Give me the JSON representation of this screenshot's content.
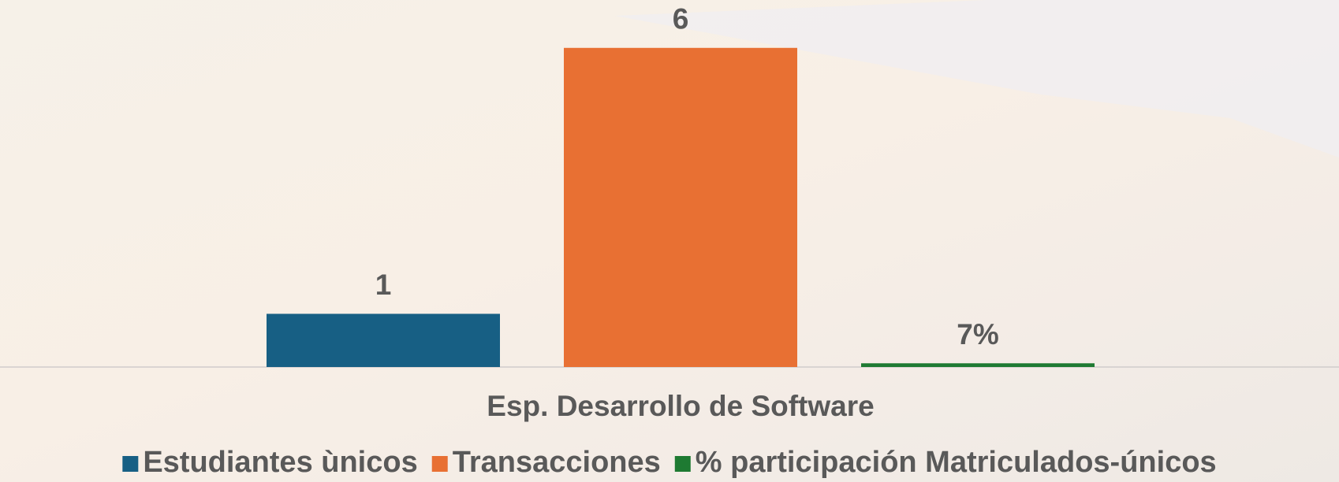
{
  "chart_data": {
    "type": "bar",
    "categories": [
      "Esp. Desarrollo de Software"
    ],
    "series": [
      {
        "name": "Estudiantes ùnicos",
        "color": "#175f84",
        "values": [
          1
        ]
      },
      {
        "name": "Transacciones",
        "color": "#e87033",
        "values": [
          6
        ]
      },
      {
        "name": "% participación Matriculados-únicos",
        "color": "#1e7a32",
        "values": [
          0.07
        ],
        "value_labels": [
          "7%"
        ]
      }
    ],
    "ylim": [
      0,
      6.9
    ],
    "legend": "bottom"
  }
}
